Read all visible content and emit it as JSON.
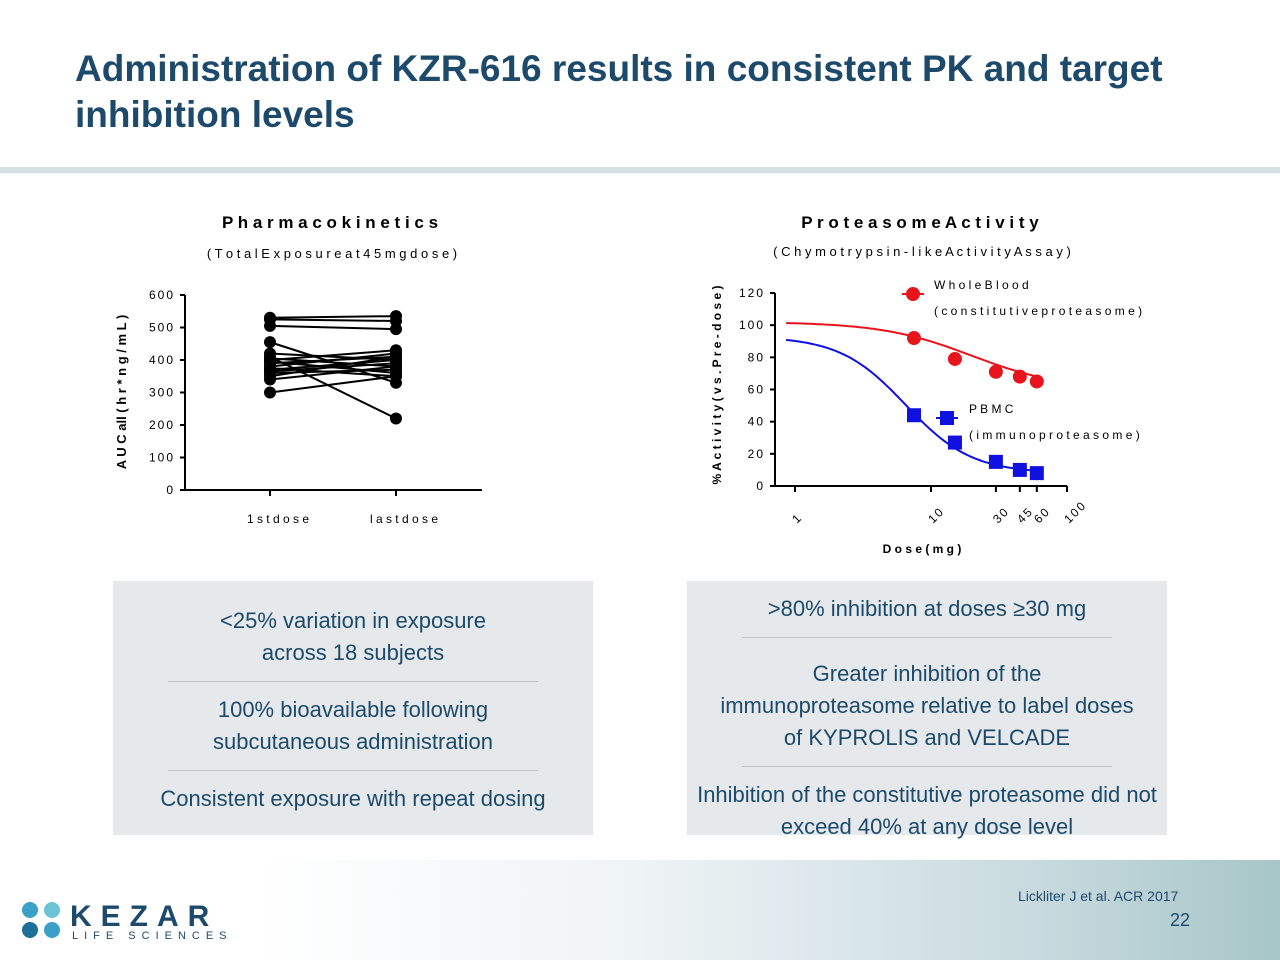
{
  "title": "Administration of KZR-616 results in consistent PK and target inhibition levels",
  "chart_data": [
    {
      "type": "line",
      "title": "P h a r m a c o k i n e t i c s",
      "subtitle": "( T o t a l  E x p o s u r e  a t  4 5  m g  d o s e )",
      "ylabel": "A U C all ( h r * n g / m L )",
      "ylim": [
        0,
        600
      ],
      "yticks": [
        0,
        100,
        200,
        300,
        400,
        500,
        600
      ],
      "categories": [
        "1 s t  d o s e",
        "l a s t  d o s e"
      ],
      "subjects": [
        [
          530,
          535
        ],
        [
          525,
          520
        ],
        [
          505,
          495
        ],
        [
          455,
          330
        ],
        [
          420,
          400
        ],
        [
          410,
          220
        ],
        [
          405,
          380
        ],
        [
          400,
          430
        ],
        [
          395,
          360
        ],
        [
          390,
          410
        ],
        [
          380,
          420
        ],
        [
          375,
          350
        ],
        [
          370,
          400
        ],
        [
          365,
          390
        ],
        [
          360,
          370
        ],
        [
          350,
          410
        ],
        [
          340,
          380
        ],
        [
          300,
          350
        ]
      ]
    },
    {
      "type": "scatter",
      "title": "P r o t e a s o m e  A c t i v i t y",
      "subtitle": "( C h y m o t r y p s i n - l i k e  A c t i v i t y  A s s a y )",
      "xlabel": "D o s e  ( m g )",
      "ylabel": "%  A c t i v i t y  ( v s .  P r e - d o s e )",
      "xscale": "log",
      "xlim": [
        0.85,
        100
      ],
      "ylim": [
        0,
        120
      ],
      "xticks": [
        "1",
        "10",
        "30",
        "45",
        "60",
        "100"
      ],
      "yticks": [
        0,
        20,
        40,
        60,
        80,
        100,
        120
      ],
      "series": [
        {
          "name": "W h o l e  B l o o d",
          "name2": "( c o n s t i t u t i v e  p r o t e a s o m e )",
          "color": "#e8141b",
          "marker": "circle",
          "x": [
            7.5,
            15,
            30,
            45,
            60
          ],
          "y": [
            92,
            79,
            71,
            68,
            65
          ]
        },
        {
          "name": "P B M C",
          "name2": "( i m m u n o p r o t e a s o m e )",
          "color": "#1010e0",
          "marker": "square",
          "x": [
            7.5,
            15,
            30,
            45,
            60
          ],
          "y": [
            44,
            27,
            15,
            10,
            8
          ]
        }
      ]
    }
  ],
  "left_box": [
    "<25% variation in exposure across 18 subjects",
    "100% bioavailable following subcutaneous administration",
    "Consistent exposure with repeat dosing"
  ],
  "right_box": [
    ">80% inhibition at doses ≥30 mg",
    "Greater inhibition of the immunoproteasome relative to label doses of KYPROLIS and VELCADE",
    "Inhibition of the constitutive proteasome did not exceed 40% at any dose level"
  ],
  "citation": "Lickliter J et al. ACR 2017",
  "page_number": "22",
  "logo": {
    "word": "KEZAR",
    "sub": "LIFE SCIENCES"
  }
}
